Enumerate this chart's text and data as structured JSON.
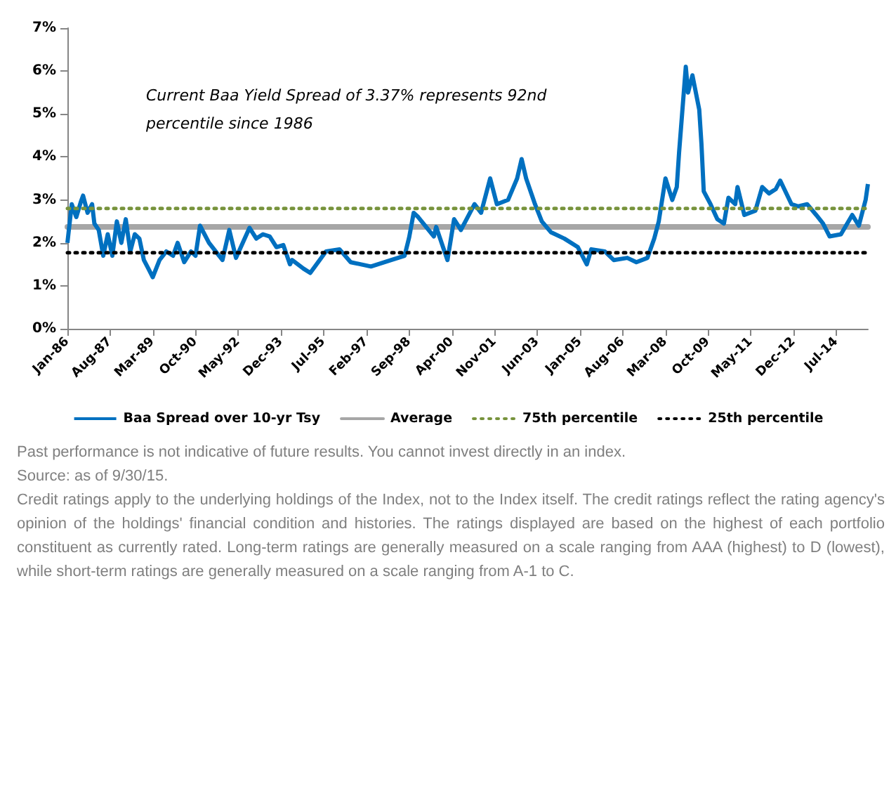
{
  "chart_data": {
    "type": "line",
    "x": [
      "1986-01",
      "1986-03",
      "1986-05",
      "1986-07",
      "1986-08",
      "1986-10",
      "1986-12",
      "1987-01",
      "1987-03",
      "1987-05",
      "1987-07",
      "1987-09",
      "1987-11",
      "1988-01",
      "1988-03",
      "1988-05",
      "1988-07",
      "1988-09",
      "1988-11",
      "1989-01",
      "1989-03",
      "1989-06",
      "1989-09",
      "1989-12",
      "1990-02",
      "1990-05",
      "1990-08",
      "1990-10",
      "1990-12",
      "1991-04",
      "1991-07",
      "1991-10",
      "1992-01",
      "1992-04",
      "1992-07",
      "1992-10",
      "1993-01",
      "1993-04",
      "1993-07",
      "1993-10",
      "1994-01",
      "1994-04",
      "1994-05",
      "1994-10",
      "1995-01",
      "1995-08",
      "1996-02",
      "1996-07",
      "1997-04",
      "1998-01",
      "1998-07",
      "1998-09",
      "1998-11",
      "1999-01",
      "1999-08",
      "1999-09",
      "2000-02",
      "2000-05",
      "2000-08",
      "2001-02",
      "2001-05",
      "2001-09",
      "2001-12",
      "2002-05",
      "2002-09",
      "2002-11",
      "2003-01",
      "2003-05",
      "2003-08",
      "2003-12",
      "2004-06",
      "2004-12",
      "2005-04",
      "2005-06",
      "2005-12",
      "2006-04",
      "2006-10",
      "2007-02",
      "2007-07",
      "2007-10",
      "2007-12",
      "2008-03",
      "2008-06",
      "2008-08",
      "2008-09",
      "2008-12",
      "2009-01",
      "2009-03",
      "2009-06",
      "2009-07",
      "2009-08",
      "2009-11",
      "2010-02",
      "2010-05",
      "2010-07",
      "2010-10",
      "2010-11",
      "2011-02",
      "2011-07",
      "2011-10",
      "2012-01",
      "2012-04",
      "2012-06",
      "2012-11",
      "2013-02",
      "2013-06",
      "2013-10",
      "2014-01",
      "2014-04",
      "2014-09",
      "2015-02",
      "2015-05",
      "2015-08",
      "2015-09"
    ],
    "series": [
      {
        "name": "Baa Spread over 10-yr Tsy",
        "color": "#0070c0",
        "values": [
          2.0,
          2.9,
          2.6,
          2.95,
          3.1,
          2.7,
          2.9,
          2.45,
          2.3,
          1.7,
          2.2,
          1.7,
          2.5,
          2.0,
          2.55,
          1.8,
          2.2,
          2.1,
          1.6,
          1.4,
          1.2,
          1.6,
          1.8,
          1.7,
          2.0,
          1.55,
          1.8,
          1.7,
          2.4,
          2.0,
          1.8,
          1.6,
          2.3,
          1.65,
          2.0,
          2.35,
          2.1,
          2.2,
          2.15,
          1.9,
          1.95,
          1.5,
          1.6,
          1.4,
          1.3,
          1.8,
          1.85,
          1.55,
          1.45,
          1.6,
          1.7,
          2.13,
          2.7,
          2.6,
          2.15,
          2.37,
          1.6,
          2.55,
          2.3,
          2.9,
          2.7,
          3.5,
          2.9,
          3.0,
          3.5,
          3.95,
          3.5,
          2.9,
          2.5,
          2.25,
          2.1,
          1.9,
          1.5,
          1.85,
          1.8,
          1.6,
          1.65,
          1.55,
          1.65,
          2.1,
          2.5,
          3.5,
          3.0,
          3.3,
          4.1,
          6.1,
          5.5,
          5.9,
          5.1,
          4.3,
          3.2,
          2.9,
          2.55,
          2.45,
          3.05,
          2.9,
          3.3,
          2.65,
          2.75,
          3.3,
          3.15,
          3.25,
          3.45,
          2.9,
          2.85,
          2.9,
          2.65,
          2.45,
          2.15,
          2.2,
          2.65,
          2.4,
          3.0,
          3.37
        ]
      }
    ],
    "ref_lines": [
      {
        "axis": "y",
        "value": 2.37,
        "label": "Average",
        "color": "#a6a6a6",
        "line_style": "solid"
      },
      {
        "axis": "y",
        "value": 2.8,
        "label": "75th percentile",
        "color": "#77933c",
        "line_style": "dotted"
      },
      {
        "axis": "y",
        "value": 1.77,
        "label": "25th percentile",
        "color": "#000000",
        "line_style": "dotted"
      }
    ],
    "xlim": [
      "1986-01",
      "2015-09"
    ],
    "xticks": [
      {
        "value": "1986-01",
        "label": "Jan-86"
      },
      {
        "value": "1987-08",
        "label": "Aug-87"
      },
      {
        "value": "1989-03",
        "label": "Mar-89"
      },
      {
        "value": "1990-10",
        "label": "Oct-90"
      },
      {
        "value": "1992-05",
        "label": "May-92"
      },
      {
        "value": "1993-12",
        "label": "Dec-93"
      },
      {
        "value": "1995-07",
        "label": "Jul-95"
      },
      {
        "value": "1997-02",
        "label": "Feb-97"
      },
      {
        "value": "1998-09",
        "label": "Sep-98"
      },
      {
        "value": "2000-04",
        "label": "Apr-00"
      },
      {
        "value": "2001-11",
        "label": "Nov-01"
      },
      {
        "value": "2003-06",
        "label": "Jun-03"
      },
      {
        "value": "2005-01",
        "label": "Jan-05"
      },
      {
        "value": "2006-08",
        "label": "Aug-06"
      },
      {
        "value": "2008-03",
        "label": "Mar-08"
      },
      {
        "value": "2009-10",
        "label": "Oct-09"
      },
      {
        "value": "2011-05",
        "label": "May-11"
      },
      {
        "value": "2012-12",
        "label": "Dec-12"
      },
      {
        "value": "2014-07",
        "label": "Jul-14"
      }
    ],
    "ylim": [
      0,
      7
    ],
    "yticks": [
      {
        "value": 0,
        "label": "0%"
      },
      {
        "value": 1,
        "label": "1%"
      },
      {
        "value": 2,
        "label": "2%"
      },
      {
        "value": 3,
        "label": "3%"
      },
      {
        "value": 4,
        "label": "4%"
      },
      {
        "value": 5,
        "label": "5%"
      },
      {
        "value": 6,
        "label": "6%"
      },
      {
        "value": 7,
        "label": "7%"
      }
    ],
    "grid": false,
    "legend": "bottom",
    "marker": "none",
    "line_style": "solid",
    "annotations": [
      "Current Baa Yield Spread of 3.37% represents 92nd percentile since 1986",
      "Past performance is not indicative of future results. You cannot invest directly in an index.",
      "Source: as of 9/30/15.",
      "Credit ratings apply to the underlying holdings of the Index, not to the Index itself. The credit ratings reflect the rating agency's opinion of the holdings' financial condition and histories. The ratings displayed are based on the highest of each portfolio constituent as currently rated. Long-term ratings are generally measured on a scale ranging from AAA (highest) to D (lowest), while short-term ratings are generally measured on a scale ranging from A-1 to C."
    ]
  }
}
